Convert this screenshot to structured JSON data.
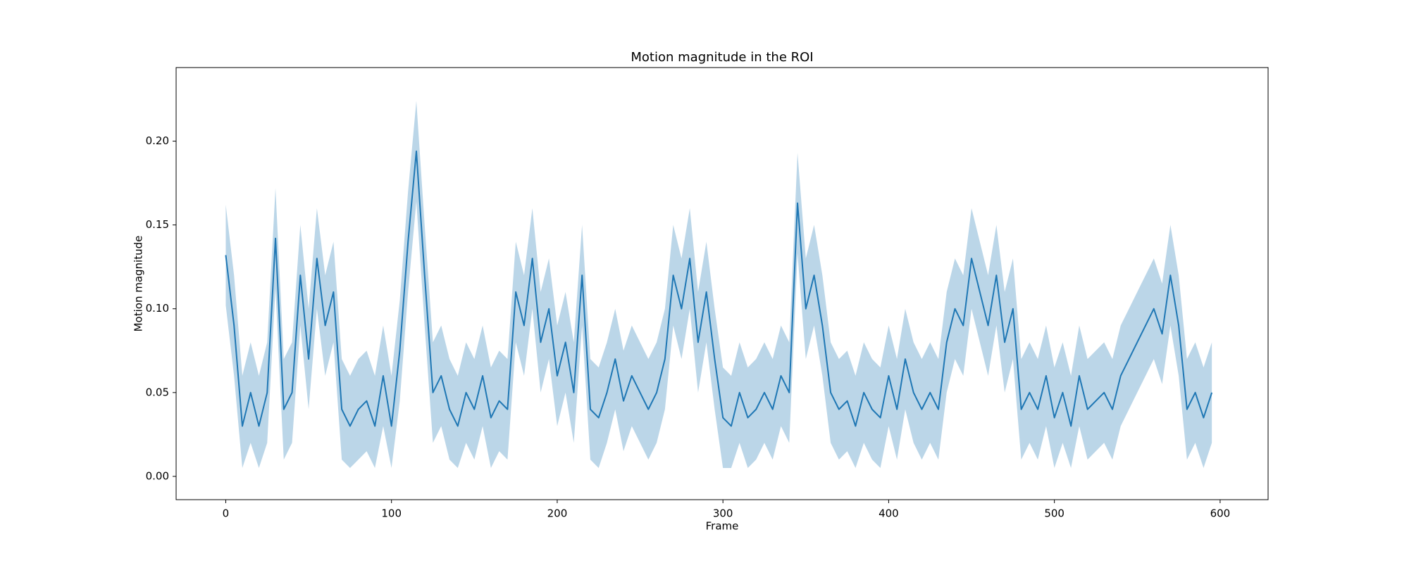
{
  "chart_data": {
    "type": "line",
    "title": "Motion magnitude in the ROI",
    "x_label": "Frame",
    "y_label": "Motion magnitude",
    "xlim": [
      -29.95,
      628.95
    ],
    "ylim": [
      -0.0139,
      0.2439
    ],
    "xticks": [
      0,
      100,
      200,
      300,
      400,
      500,
      600
    ],
    "yticks": [
      {
        "value": 0,
        "label": "0.00"
      },
      {
        "value": 0.05,
        "label": "0.05"
      },
      {
        "value": 0.1,
        "label": "0.10"
      },
      {
        "value": 0.15,
        "label": "0.15"
      },
      {
        "value": 0.2,
        "label": "0.20"
      }
    ],
    "grid": false,
    "x": [
      0,
      5,
      10,
      15,
      20,
      25,
      30,
      35,
      40,
      45,
      50,
      55,
      60,
      65,
      70,
      75,
      80,
      85,
      90,
      95,
      100,
      105,
      110,
      115,
      120,
      125,
      130,
      135,
      140,
      145,
      150,
      155,
      160,
      165,
      170,
      175,
      180,
      185,
      190,
      195,
      200,
      205,
      210,
      215,
      220,
      225,
      230,
      235,
      240,
      245,
      250,
      255,
      260,
      265,
      270,
      275,
      280,
      285,
      290,
      295,
      300,
      305,
      310,
      315,
      320,
      325,
      330,
      335,
      340,
      345,
      350,
      355,
      360,
      365,
      370,
      375,
      380,
      385,
      390,
      395,
      400,
      405,
      410,
      415,
      420,
      425,
      430,
      435,
      440,
      445,
      450,
      455,
      460,
      465,
      470,
      475,
      480,
      485,
      490,
      495,
      500,
      505,
      510,
      515,
      520,
      525,
      530,
      535,
      540,
      545,
      550,
      555,
      560,
      565,
      570,
      575,
      580,
      585,
      590,
      595
    ],
    "series": [
      {
        "color": "#1f77b4",
        "band_opacity": 0.3,
        "values": [
          0.132,
          0.09,
          0.03,
          0.05,
          0.03,
          0.05,
          0.142,
          0.04,
          0.05,
          0.12,
          0.07,
          0.13,
          0.09,
          0.11,
          0.04,
          0.03,
          0.04,
          0.045,
          0.03,
          0.06,
          0.03,
          0.075,
          0.14,
          0.194,
          0.12,
          0.05,
          0.06,
          0.04,
          0.03,
          0.05,
          0.04,
          0.06,
          0.035,
          0.045,
          0.04,
          0.11,
          0.09,
          0.13,
          0.08,
          0.1,
          0.06,
          0.08,
          0.05,
          0.12,
          0.04,
          0.035,
          0.05,
          0.07,
          0.045,
          0.06,
          0.05,
          0.04,
          0.05,
          0.07,
          0.12,
          0.1,
          0.13,
          0.08,
          0.11,
          0.07,
          0.035,
          0.03,
          0.05,
          0.035,
          0.04,
          0.05,
          0.04,
          0.06,
          0.05,
          0.163,
          0.1,
          0.12,
          0.09,
          0.05,
          0.04,
          0.045,
          0.03,
          0.05,
          0.04,
          0.035,
          0.06,
          0.04,
          0.07,
          0.05,
          0.04,
          0.05,
          0.04,
          0.08,
          0.1,
          0.09,
          0.13,
          0.11,
          0.09,
          0.12,
          0.08,
          0.1,
          0.04,
          0.05,
          0.04,
          0.06,
          0.035,
          0.05,
          0.03,
          0.06,
          0.04,
          0.045,
          0.05,
          0.04,
          0.06,
          0.07,
          0.08,
          0.09,
          0.1,
          0.085,
          0.12,
          0.09,
          0.04,
          0.05,
          0.035,
          0.05
        ],
        "lower": [
          0.102,
          0.06,
          0.005,
          0.02,
          0.005,
          0.02,
          0.112,
          0.01,
          0.02,
          0.09,
          0.04,
          0.1,
          0.06,
          0.08,
          0.01,
          0.005,
          0.01,
          0.015,
          0.005,
          0.03,
          0.005,
          0.045,
          0.11,
          0.164,
          0.09,
          0.02,
          0.03,
          0.01,
          0.005,
          0.02,
          0.01,
          0.03,
          0.005,
          0.015,
          0.01,
          0.08,
          0.06,
          0.1,
          0.05,
          0.07,
          0.03,
          0.05,
          0.02,
          0.09,
          0.01,
          0.005,
          0.02,
          0.04,
          0.015,
          0.03,
          0.02,
          0.01,
          0.02,
          0.04,
          0.09,
          0.07,
          0.1,
          0.05,
          0.08,
          0.04,
          0.005,
          0.005,
          0.02,
          0.005,
          0.01,
          0.02,
          0.01,
          0.03,
          0.02,
          0.133,
          0.07,
          0.09,
          0.06,
          0.02,
          0.01,
          0.015,
          0.005,
          0.02,
          0.01,
          0.005,
          0.03,
          0.01,
          0.04,
          0.02,
          0.01,
          0.02,
          0.01,
          0.05,
          0.07,
          0.06,
          0.1,
          0.08,
          0.06,
          0.09,
          0.05,
          0.07,
          0.01,
          0.02,
          0.01,
          0.03,
          0.005,
          0.02,
          0.005,
          0.03,
          0.01,
          0.015,
          0.02,
          0.01,
          0.03,
          0.04,
          0.05,
          0.06,
          0.07,
          0.055,
          0.09,
          0.06,
          0.01,
          0.02,
          0.005,
          0.02
        ],
        "upper": [
          0.162,
          0.12,
          0.06,
          0.08,
          0.06,
          0.08,
          0.172,
          0.07,
          0.08,
          0.15,
          0.1,
          0.16,
          0.12,
          0.14,
          0.07,
          0.06,
          0.07,
          0.075,
          0.06,
          0.09,
          0.06,
          0.105,
          0.17,
          0.224,
          0.15,
          0.08,
          0.09,
          0.07,
          0.06,
          0.08,
          0.07,
          0.09,
          0.065,
          0.075,
          0.07,
          0.14,
          0.12,
          0.16,
          0.11,
          0.13,
          0.09,
          0.11,
          0.08,
          0.15,
          0.07,
          0.065,
          0.08,
          0.1,
          0.075,
          0.09,
          0.08,
          0.07,
          0.08,
          0.1,
          0.15,
          0.13,
          0.16,
          0.11,
          0.14,
          0.1,
          0.065,
          0.06,
          0.08,
          0.065,
          0.07,
          0.08,
          0.07,
          0.09,
          0.08,
          0.193,
          0.13,
          0.15,
          0.12,
          0.08,
          0.07,
          0.075,
          0.06,
          0.08,
          0.07,
          0.065,
          0.09,
          0.07,
          0.1,
          0.08,
          0.07,
          0.08,
          0.07,
          0.11,
          0.13,
          0.12,
          0.16,
          0.14,
          0.12,
          0.15,
          0.11,
          0.13,
          0.07,
          0.08,
          0.07,
          0.09,
          0.065,
          0.08,
          0.06,
          0.09,
          0.07,
          0.075,
          0.08,
          0.07,
          0.09,
          0.1,
          0.11,
          0.12,
          0.13,
          0.115,
          0.15,
          0.12,
          0.07,
          0.08,
          0.065,
          0.08
        ]
      }
    ]
  }
}
